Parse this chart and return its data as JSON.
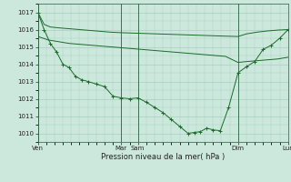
{
  "bg_color": "#cce8dc",
  "grid_color": "#aacfbf",
  "line_color": "#1a6b2a",
  "xlabel": "Pression niveau de la mer( hPa )",
  "ylim": [
    1009.5,
    1017.5
  ],
  "yticks": [
    1010,
    1011,
    1012,
    1013,
    1014,
    1015,
    1016,
    1017
  ],
  "xlim": [
    0,
    240
  ],
  "xtick_positions": [
    0,
    80,
    96,
    192,
    240
  ],
  "xtick_labels": [
    "Ven",
    "Mar",
    "Sam",
    "Dim",
    "Lun"
  ],
  "vline_positions": [
    0,
    80,
    96,
    192,
    240
  ],
  "line1_x": [
    0,
    6,
    12,
    20,
    30,
    40,
    50,
    60,
    70,
    80,
    90,
    100,
    110,
    120,
    130,
    140,
    150,
    160,
    170,
    180,
    192,
    200,
    210,
    220,
    230,
    240
  ],
  "line1_y": [
    1017.0,
    1016.3,
    1016.15,
    1016.1,
    1016.05,
    1016.0,
    1015.95,
    1015.9,
    1015.85,
    1015.82,
    1015.8,
    1015.78,
    1015.76,
    1015.74,
    1015.72,
    1015.7,
    1015.68,
    1015.66,
    1015.64,
    1015.62,
    1015.6,
    1015.75,
    1015.85,
    1015.92,
    1015.97,
    1016.0
  ],
  "line2_x": [
    0,
    10,
    20,
    30,
    40,
    50,
    60,
    70,
    80,
    90,
    100,
    110,
    120,
    130,
    140,
    150,
    160,
    170,
    180,
    192,
    200,
    210,
    220,
    230,
    240
  ],
  "line2_y": [
    1015.6,
    1015.4,
    1015.3,
    1015.2,
    1015.15,
    1015.1,
    1015.05,
    1015.0,
    1014.95,
    1014.9,
    1014.85,
    1014.8,
    1014.75,
    1014.7,
    1014.65,
    1014.6,
    1014.55,
    1014.5,
    1014.45,
    1014.1,
    1014.15,
    1014.2,
    1014.25,
    1014.3,
    1014.4
  ],
  "line3_x": [
    0,
    6,
    12,
    18,
    24,
    30,
    36,
    42,
    48,
    56,
    64,
    72,
    80,
    88,
    96,
    104,
    112,
    120,
    128,
    136,
    144,
    150,
    156,
    162,
    168,
    175,
    183,
    192,
    200,
    208,
    216,
    224,
    232,
    240
  ],
  "line3_y": [
    1017.0,
    1016.0,
    1015.2,
    1014.7,
    1014.0,
    1013.8,
    1013.3,
    1013.1,
    1013.0,
    1012.85,
    1012.7,
    1012.15,
    1012.05,
    1012.0,
    1012.05,
    1011.8,
    1011.5,
    1011.2,
    1010.8,
    1010.4,
    1010.0,
    1010.05,
    1010.1,
    1010.3,
    1010.2,
    1010.15,
    1011.5,
    1013.5,
    1013.85,
    1014.15,
    1014.85,
    1015.1,
    1015.5,
    1016.0
  ],
  "figsize": [
    3.2,
    2.0
  ],
  "dpi": 100
}
